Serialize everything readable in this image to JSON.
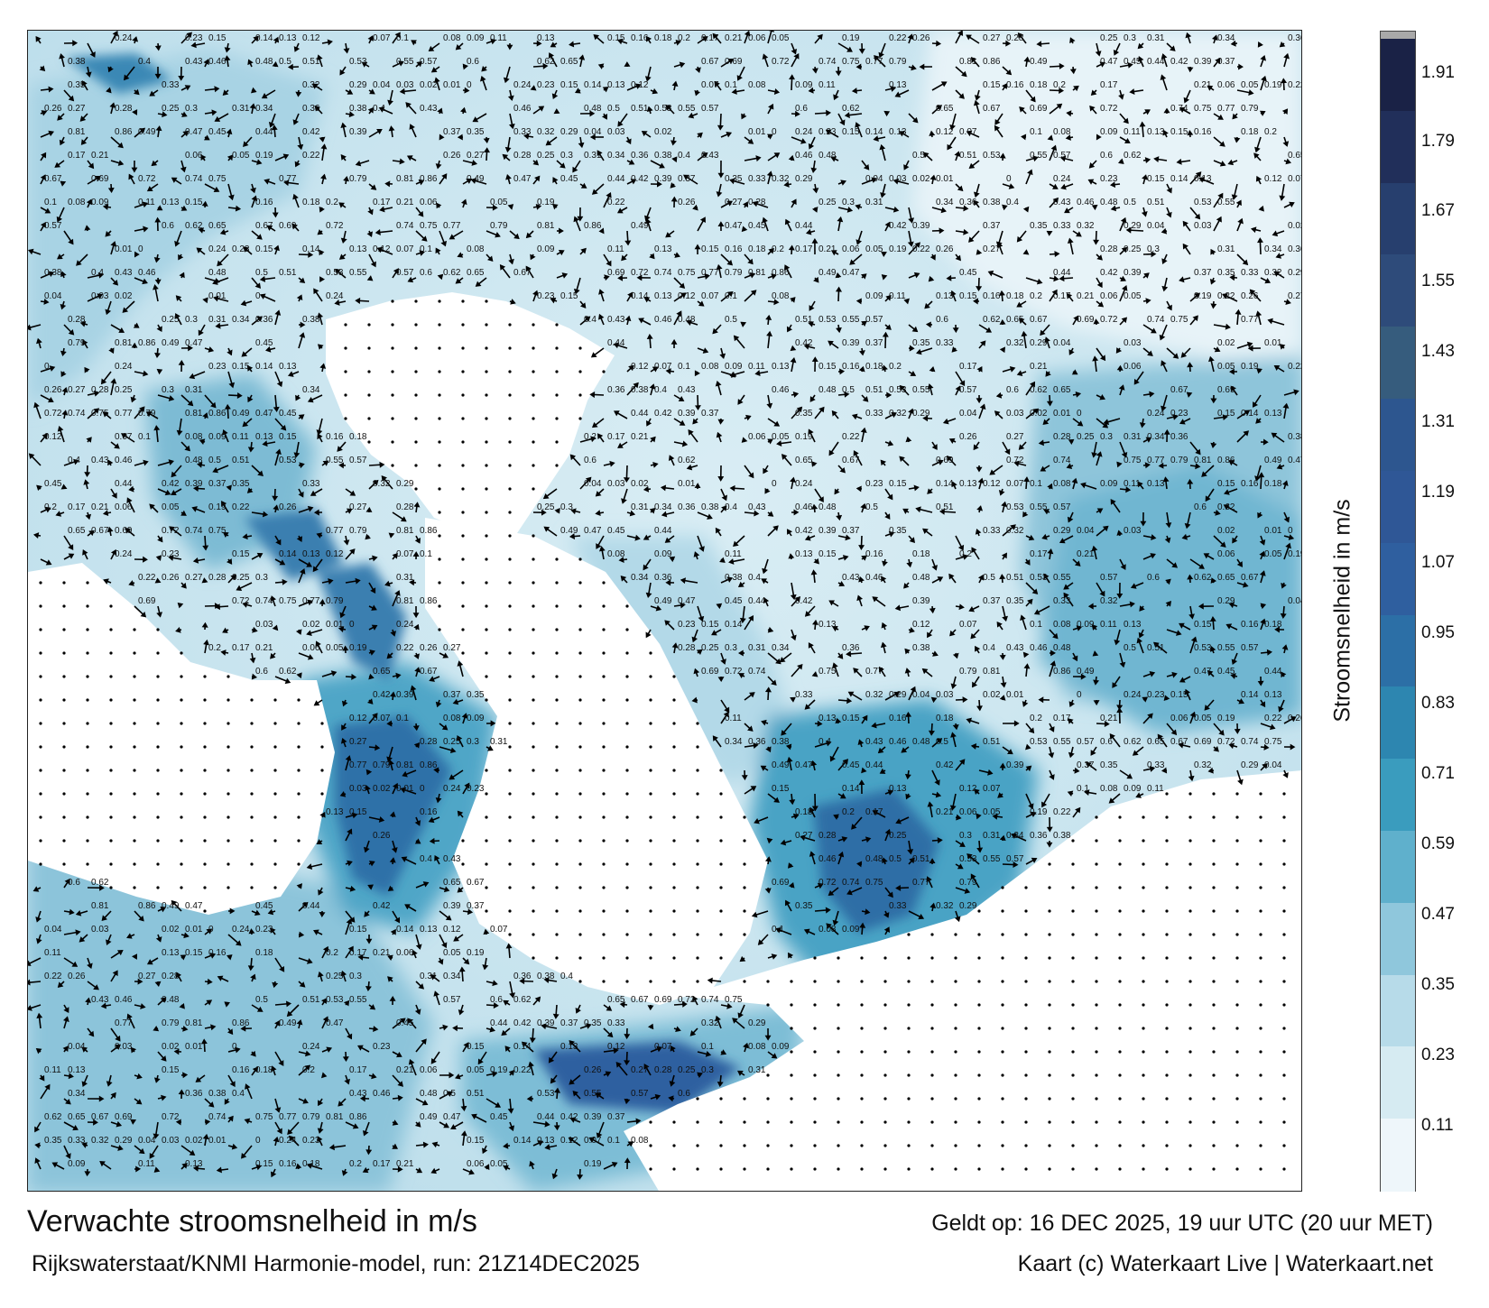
{
  "map": {
    "panel_label": "current-speed-map",
    "land_color": "#ffffff",
    "speed_labels": [
      "0.24",
      "0.23",
      "0.15",
      "0.14",
      "0.13",
      "0.12",
      "0.07",
      "0.1",
      "0.08",
      "0.09",
      "0.11",
      "0.13",
      "0.15",
      "0.16",
      "0.18",
      "0.2",
      "0.17",
      "0.21",
      "0.06",
      "0.05",
      "0.19",
      "0.22",
      "0.26",
      "0.27",
      "0.28",
      "0.25",
      "0.3",
      "0.31",
      "0.34",
      "0.36",
      "0.38",
      "0.4",
      "0.43",
      "0.46",
      "0.48",
      "0.5",
      "0.51",
      "0.53",
      "0.55",
      "0.57",
      "0.6",
      "0.62",
      "0.65",
      "0.67",
      "0.69",
      "0.72",
      "0.74",
      "0.75",
      "0.77",
      "0.79",
      "0.81",
      "0.86",
      "0.49",
      "0.47",
      "0.45",
      "0.44",
      "0.42",
      "0.39",
      "0.37",
      "0.35",
      "0.33",
      "0.32",
      "0.29",
      "0.04",
      "0.03",
      "0.02",
      "0.01",
      "0"
    ]
  },
  "colorbar": {
    "label": "Stroomsnelheid in m/s",
    "ticks": [
      "1.91",
      "1.79",
      "1.67",
      "1.55",
      "1.43",
      "1.31",
      "1.19",
      "1.07",
      "0.95",
      "0.83",
      "0.71",
      "0.59",
      "0.47",
      "0.35",
      "0.23",
      "0.11"
    ],
    "colors": [
      "#eef6fa",
      "#d6ebf2",
      "#b7dbe9",
      "#8fc7dc",
      "#5fb0cc",
      "#3a9cbe",
      "#2d86b0",
      "#2c6fa6",
      "#2f5f9f",
      "#2f5796",
      "#2d568f",
      "#365c7d",
      "#2e4b7a",
      "#273f6e",
      "#212f5a",
      "#1a2246",
      "#a9a9a9"
    ]
  },
  "footer": {
    "title": "Verwachte stroomsnelheid in m/s",
    "source": "Rijkswaterstaat/KNMI Harmonie-model, run: 21Z14DEC2025",
    "valid": "Geldt op: 16 DEC 2025, 19 uur UTC (20 uur MET)",
    "credit": "Kaart (c) Waterkaart Live | Waterkaart.net"
  }
}
